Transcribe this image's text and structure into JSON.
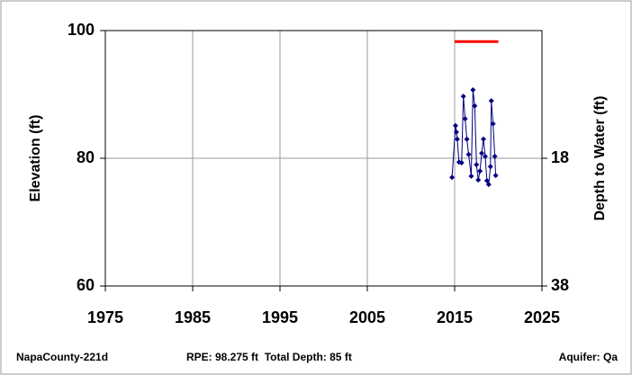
{
  "chart_data": {
    "type": "line",
    "ylabel": "Elevation (ft)",
    "y2label": "Depth to Water (ft)",
    "xlim": [
      1975,
      2025
    ],
    "xticks": [
      1975,
      1985,
      1995,
      2005,
      2015,
      2025
    ],
    "ylim": [
      60,
      100
    ],
    "yticks": [
      60,
      80,
      100
    ],
    "y2lim": [
      38,
      -2
    ],
    "y2ticks": [
      18,
      38
    ],
    "grid": true,
    "series": [
      {
        "color": "#ff0000",
        "x": [
          2015,
          2020
        ],
        "values": [
          98.275,
          98.275
        ],
        "markers": false
      },
      {
        "color": "#000080",
        "markers": true,
        "x": [
          2014.7,
          2015.1,
          2015.2,
          2015.3,
          2015.5,
          2015.8,
          2016.0,
          2016.2,
          2016.4,
          2016.6,
          2016.9,
          2017.1,
          2017.3,
          2017.5,
          2017.7,
          2017.9,
          2018.1,
          2018.3,
          2018.5,
          2018.7,
          2018.9,
          2019.1,
          2019.2,
          2019.4,
          2019.6,
          2019.7
        ],
        "values": [
          77.0,
          85.1,
          84.1,
          83.0,
          79.4,
          79.3,
          89.7,
          86.2,
          83.0,
          80.6,
          77.2,
          90.7,
          88.2,
          79.0,
          76.6,
          78.0,
          80.8,
          83.0,
          80.3,
          76.5,
          75.9,
          78.7,
          89.0,
          85.4,
          80.3,
          77.3
        ]
      }
    ],
    "footer": {
      "well": "NapaCounty-221d",
      "info": "RPE: 98.275 ft  Total Depth: 85 ft",
      "aquifer": "Aquifer: Qa"
    }
  }
}
